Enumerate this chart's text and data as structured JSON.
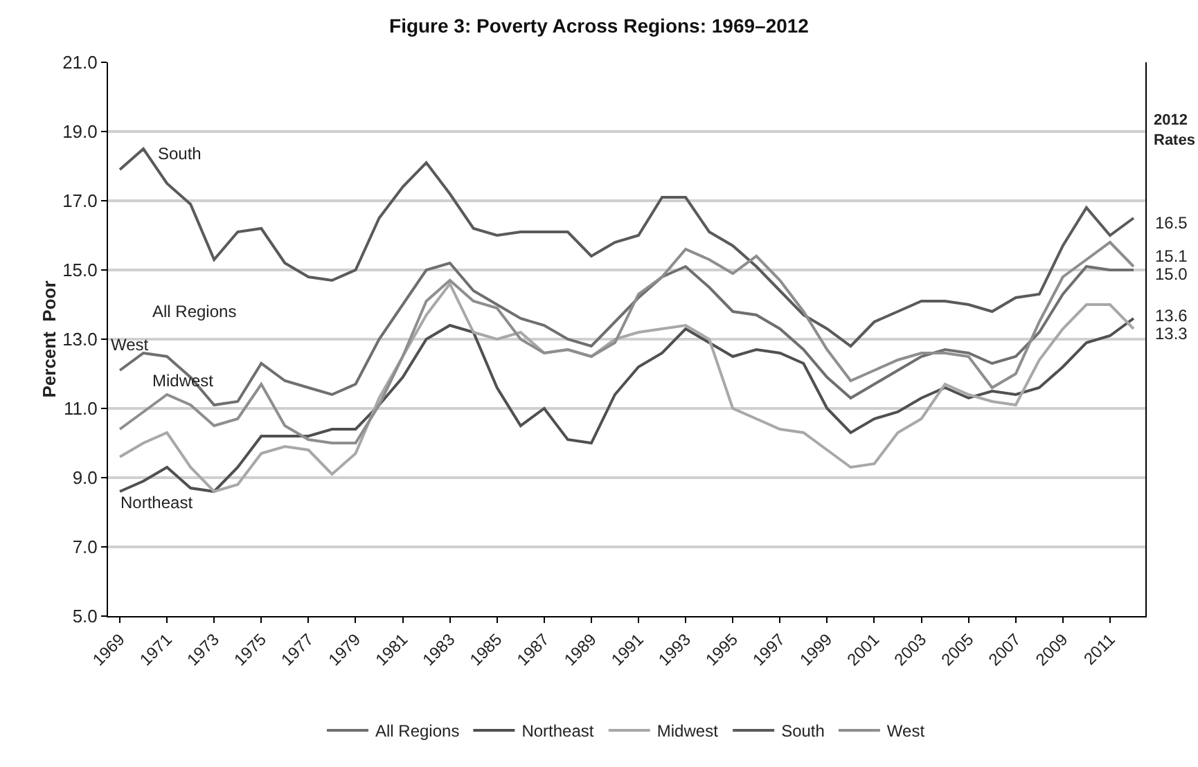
{
  "chart_data": {
    "type": "line",
    "title": "Figure 3: Poverty Across Regions: 1969–2012",
    "ylabel": "Percent  Poor",
    "x": [
      1969,
      1970,
      1971,
      1972,
      1973,
      1974,
      1975,
      1976,
      1977,
      1978,
      1979,
      1980,
      1981,
      1982,
      1983,
      1984,
      1985,
      1986,
      1987,
      1988,
      1989,
      1990,
      1991,
      1992,
      1993,
      1994,
      1995,
      1996,
      1997,
      1998,
      1999,
      2000,
      2001,
      2002,
      2003,
      2004,
      2005,
      2006,
      2007,
      2008,
      2009,
      2010,
      2011,
      2012
    ],
    "series": [
      {
        "name": "All Regions",
        "color": "#6f6f6f",
        "values": [
          12.1,
          12.6,
          12.5,
          11.9,
          11.1,
          11.2,
          12.3,
          11.8,
          11.6,
          11.4,
          11.7,
          13.0,
          14.0,
          15.0,
          15.2,
          14.4,
          14.0,
          13.6,
          13.4,
          13.0,
          12.8,
          13.5,
          14.2,
          14.8,
          15.1,
          14.5,
          13.8,
          13.7,
          13.3,
          12.7,
          11.9,
          11.3,
          11.7,
          12.1,
          12.5,
          12.7,
          12.6,
          12.3,
          12.5,
          13.2,
          14.3,
          15.1,
          15.0,
          15.0
        ],
        "value_labels": [
          null,
          null,
          null,
          null,
          null,
          null,
          null,
          null,
          null,
          null,
          null,
          null,
          null,
          null,
          null,
          null,
          null,
          null,
          null,
          null,
          null,
          null,
          null,
          null,
          null,
          null,
          null,
          null,
          null,
          null,
          null,
          null,
          null,
          null,
          null,
          null,
          null,
          null,
          null,
          null,
          null,
          null,
          null,
          "15.0"
        ]
      },
      {
        "name": "Northeast",
        "color": "#505050",
        "values": [
          8.6,
          8.9,
          9.3,
          8.7,
          8.6,
          9.3,
          10.2,
          10.2,
          10.2,
          10.4,
          10.4,
          11.1,
          11.9,
          13.0,
          13.4,
          13.2,
          11.6,
          10.5,
          11.0,
          10.1,
          10.0,
          11.4,
          12.2,
          12.6,
          13.3,
          12.9,
          12.5,
          12.7,
          12.6,
          12.3,
          11.0,
          10.3,
          10.7,
          10.9,
          11.3,
          11.6,
          11.3,
          11.5,
          11.4,
          11.6,
          12.2,
          12.9,
          13.1,
          13.6
        ],
        "value_labels": [
          null,
          null,
          null,
          null,
          null,
          null,
          null,
          null,
          null,
          null,
          null,
          null,
          null,
          null,
          null,
          null,
          null,
          null,
          null,
          null,
          null,
          null,
          null,
          null,
          null,
          null,
          null,
          null,
          null,
          null,
          null,
          null,
          null,
          null,
          null,
          null,
          null,
          null,
          null,
          null,
          null,
          null,
          null,
          "13.6"
        ]
      },
      {
        "name": "Midwest",
        "color": "#a8a8a8",
        "values": [
          9.6,
          10.0,
          10.3,
          9.3,
          8.6,
          8.8,
          9.7,
          9.9,
          9.8,
          9.1,
          9.7,
          11.3,
          12.5,
          13.7,
          14.6,
          13.2,
          13.0,
          13.2,
          12.6,
          12.7,
          12.5,
          13.0,
          13.2,
          13.3,
          13.4,
          13.0,
          11.0,
          10.7,
          10.4,
          10.3,
          9.8,
          9.3,
          9.4,
          10.3,
          10.7,
          11.7,
          11.4,
          11.2,
          11.1,
          12.4,
          13.3,
          14.0,
          14.0,
          13.3
        ],
        "value_labels": [
          null,
          null,
          null,
          null,
          null,
          null,
          null,
          null,
          null,
          null,
          null,
          null,
          null,
          null,
          null,
          null,
          null,
          null,
          null,
          null,
          null,
          null,
          null,
          null,
          null,
          null,
          null,
          null,
          null,
          null,
          null,
          null,
          null,
          null,
          null,
          null,
          null,
          null,
          null,
          null,
          null,
          null,
          null,
          "13.3"
        ]
      },
      {
        "name": "South",
        "color": "#5a5a5a",
        "values": [
          17.9,
          18.5,
          17.5,
          16.9,
          15.3,
          16.1,
          16.2,
          15.2,
          14.8,
          14.7,
          15.0,
          16.5,
          17.4,
          18.1,
          17.2,
          16.2,
          16.0,
          16.1,
          16.1,
          16.1,
          15.4,
          15.8,
          16.0,
          17.1,
          17.1,
          16.1,
          15.7,
          15.1,
          14.4,
          13.7,
          13.3,
          12.8,
          13.5,
          13.8,
          14.1,
          14.1,
          14.0,
          13.8,
          14.2,
          14.3,
          15.7,
          16.8,
          16.0,
          16.5
        ],
        "value_labels": [
          null,
          null,
          null,
          null,
          null,
          null,
          null,
          null,
          null,
          null,
          null,
          null,
          null,
          null,
          null,
          null,
          null,
          null,
          null,
          null,
          null,
          null,
          null,
          null,
          null,
          null,
          null,
          null,
          null,
          null,
          null,
          null,
          null,
          null,
          null,
          null,
          null,
          null,
          null,
          null,
          null,
          null,
          null,
          "16.5"
        ]
      },
      {
        "name": "West",
        "color": "#8e8e8e",
        "values": [
          10.4,
          10.9,
          11.4,
          11.1,
          10.5,
          10.7,
          11.7,
          10.5,
          10.1,
          10.0,
          10.0,
          11.1,
          12.5,
          14.1,
          14.7,
          14.1,
          13.9,
          13.0,
          12.6,
          12.7,
          12.5,
          12.9,
          14.3,
          14.8,
          15.6,
          15.3,
          14.9,
          15.4,
          14.7,
          13.8,
          12.7,
          11.8,
          12.1,
          12.4,
          12.6,
          12.6,
          12.5,
          11.6,
          12.0,
          13.5,
          14.8,
          15.3,
          15.8,
          15.1
        ],
        "value_labels": [
          null,
          null,
          null,
          null,
          null,
          null,
          null,
          null,
          null,
          null,
          null,
          null,
          null,
          null,
          null,
          null,
          null,
          null,
          null,
          null,
          null,
          null,
          null,
          null,
          null,
          null,
          null,
          null,
          null,
          null,
          null,
          null,
          null,
          null,
          null,
          null,
          null,
          null,
          null,
          null,
          null,
          null,
          null,
          "15.1"
        ]
      }
    ],
    "xlim": [
      1968.5,
      2012.5
    ],
    "xticks": [
      1969,
      1971,
      1973,
      1975,
      1977,
      1979,
      1981,
      1983,
      1985,
      1987,
      1989,
      1991,
      1993,
      1995,
      1997,
      1999,
      2001,
      2003,
      2005,
      2007,
      2009,
      2011
    ],
    "ylim": [
      5,
      21
    ],
    "yticks": [
      {
        "value": 5,
        "label": "5.0"
      },
      {
        "value": 7,
        "label": "7.0"
      },
      {
        "value": 9,
        "label": "9.0"
      },
      {
        "value": 11,
        "label": "11.0"
      },
      {
        "value": 13,
        "label": "13.0"
      },
      {
        "value": 15,
        "label": "15.0"
      },
      {
        "value": 17,
        "label": "17.0"
      },
      {
        "value": 19,
        "label": "19.0"
      },
      {
        "value": 21,
        "label": "21.0"
      }
    ],
    "grid": "y",
    "legend": "bottom",
    "marker": "none",
    "line_style": "solid",
    "annotations": [
      "South",
      "All Regions",
      "West",
      "Midwest",
      "Northeast",
      "2012\nRates"
    ]
  }
}
